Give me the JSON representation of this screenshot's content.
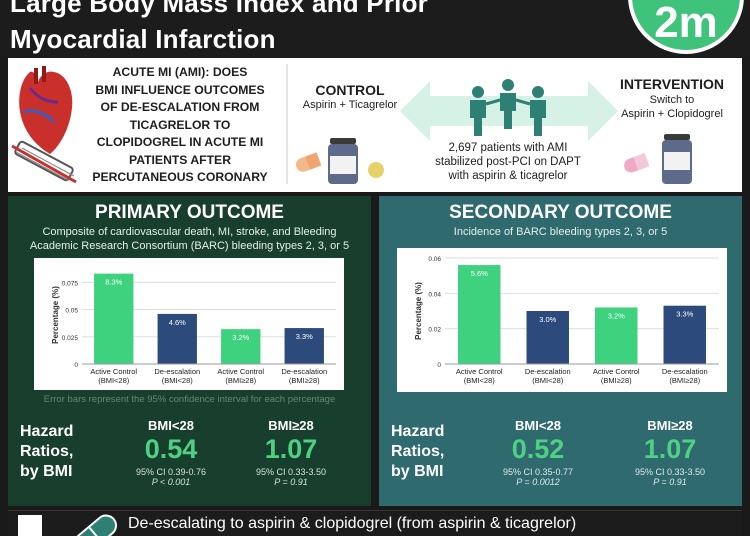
{
  "header": {
    "title_line1": "Large Body Mass Index and Prior",
    "title_line2": "Myocardial Infarction",
    "logo_text": "2m"
  },
  "question": {
    "lines": [
      "ACUTE MI (AMI): DOES",
      "BMI INFLUENCE OUTCOMES",
      "OF DE-ESCALATION FROM",
      "TICAGRELOR TO",
      "CLOPIDOGREL IN ACUTE MI",
      "PATIENTS AFTER",
      "PERCUTANEOUS CORONARY"
    ]
  },
  "control": {
    "title": "CONTROL",
    "subtitle": "Aspirin + Ticagrelor"
  },
  "intervention": {
    "title": "INTERVENTION",
    "line1": "Switch to",
    "line2": "Aspirin + Clopidogrel"
  },
  "population": {
    "line1": "2,697 patients with AMI",
    "line2": "stabilized post-PCI on DAPT",
    "line3": "with aspirin & ticagrelor"
  },
  "primary": {
    "title": "PRIMARY OUTCOME",
    "subtitle_line1": "Composite of cardiovascular death, MI, stroke, and Bleeding",
    "subtitle_line2": "Academic Research Consortium (BARC) bleeding types 2, 3, or 5",
    "error_note": "Error bars represent the 95% confidence interval for each percentage",
    "hr_label_lines": [
      "Hazard",
      "Ratios,",
      "by BMI"
    ],
    "hr": [
      {
        "bmi": "BMI<28",
        "value": "0.54",
        "ci": "95% CI 0.39-0.76",
        "p": "P < 0.001"
      },
      {
        "bmi": "BMI≥28",
        "value": "1.07",
        "ci": "95% CI 0.33-3.50",
        "p": "P = 0.91"
      }
    ]
  },
  "secondary": {
    "title": "SECONDARY OUTCOME",
    "subtitle": "Incidence of BARC bleeding types 2, 3, or 5",
    "hr_label_lines": [
      "Hazard",
      "Ratios,",
      "by BMI"
    ],
    "hr": [
      {
        "bmi": "BMI<28",
        "value": "0.52",
        "ci": "95% CI 0.35-0.77",
        "p": "P = 0.0012"
      },
      {
        "bmi": "BMI≥28",
        "value": "1.07",
        "ci": "95% CI 0.33-3.50",
        "p": "P = 0.91"
      }
    ]
  },
  "conclusion": "De-escalating to aspirin & clopidogrel (from aspirin & ticagrelor)",
  "colors": {
    "control_bar": "#3ed27f",
    "deescalation_bar": "#2d4a7c",
    "primary_panel": "#183f2d",
    "secondary_panel": "#2f6a6e",
    "hr_value": "#4fd184",
    "logo": "#3fc27a"
  },
  "chart_data": [
    {
      "type": "bar",
      "ylabel": "Percentage (%)",
      "categories": [
        "Active Control (BMI<28)",
        "De-escalation (BMI<28)",
        "Active Control (BMI≥28)",
        "De-escalation (BMI≥28)"
      ],
      "category_lines": [
        [
          "Active Control",
          "(BMI<28)"
        ],
        [
          "De-escalation",
          "(BMI<28)"
        ],
        [
          "Active Control",
          "(BMI≥28)"
        ],
        [
          "De-escalation",
          "(BMI≥28)"
        ]
      ],
      "values": [
        0.083,
        0.046,
        0.032,
        0.033
      ],
      "data_labels": [
        "8.3%",
        "4.6%",
        "3.2%",
        "3.3%"
      ],
      "ylim": [
        0,
        0.09
      ],
      "yticks": [
        0,
        0.025,
        0.05,
        0.075
      ],
      "ytick_labels": [
        "0",
        "0.025",
        "0.05",
        "0.075"
      ],
      "bar_colors": [
        "control",
        "deescalation",
        "control",
        "deescalation"
      ]
    },
    {
      "type": "bar",
      "ylabel": "Percentage (%)",
      "categories": [
        "Active Control (BMI<28)",
        "De-escalation (BMI<28)",
        "Active Control (BMI≥28)",
        "De-escalation (BMI≥28)"
      ],
      "category_lines": [
        [
          "Active Control",
          "(BMI<28)"
        ],
        [
          "De-escalation",
          "(BMI<28)"
        ],
        [
          "Active Control",
          "(BMI≥28)"
        ],
        [
          "De-escalation",
          "(BMI≥28)"
        ]
      ],
      "values": [
        0.056,
        0.03,
        0.032,
        0.033
      ],
      "data_labels": [
        "5.6%",
        "3.0%",
        "3.2%",
        "3.3%"
      ],
      "ylim": [
        0,
        0.06
      ],
      "yticks": [
        0,
        0.02,
        0.04,
        0.06
      ],
      "ytick_labels": [
        "0",
        "0.02",
        "0.04",
        "0.06"
      ],
      "bar_colors": [
        "control",
        "deescalation",
        "control",
        "deescalation"
      ]
    }
  ]
}
